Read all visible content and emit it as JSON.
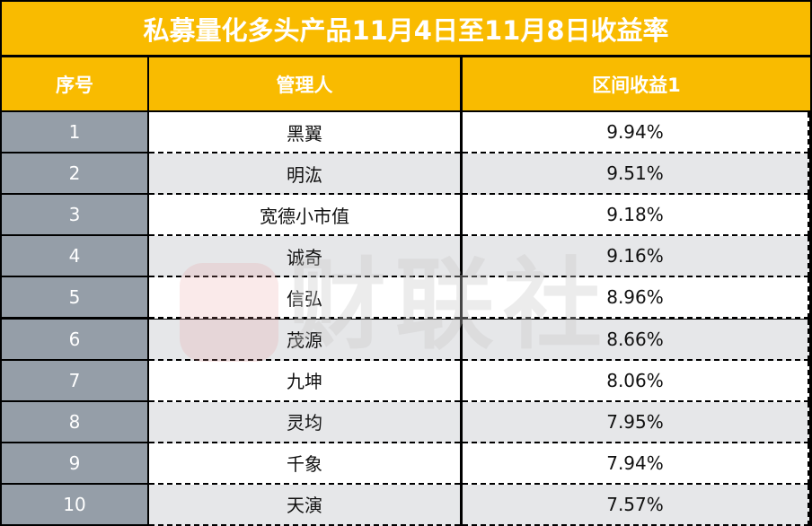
{
  "title": "私募量化多头产品11月4日至11月8日收益率",
  "headers": [
    "序号",
    "管理人",
    "区间收益1"
  ],
  "rows": [
    {
      "no": "1",
      "manager": "黑翼",
      "return": "9.94%"
    },
    {
      "no": "2",
      "manager": "明汯",
      "return": "9.51%"
    },
    {
      "no": "3",
      "manager": "宽德小市值",
      "return": "9.18%"
    },
    {
      "no": "4",
      "manager": "诚奇",
      "return": "9.16%"
    },
    {
      "no": "5",
      "manager": "信弘",
      "return": "8.96%"
    },
    {
      "no": "6",
      "manager": "茂源",
      "return": "8.66%"
    },
    {
      "no": "7",
      "manager": "九坤",
      "return": "8.06%"
    },
    {
      "no": "8",
      "manager": "灵均",
      "return": "7.95%"
    },
    {
      "no": "9",
      "manager": "千象",
      "return": "7.94%"
    },
    {
      "no": "10",
      "manager": "天演",
      "return": "7.57%"
    }
  ],
  "watermark": "财联社",
  "colors": {
    "header": "#f9bb00",
    "index_cell": "#959ea8",
    "alt_row": "#e6e7e9"
  }
}
